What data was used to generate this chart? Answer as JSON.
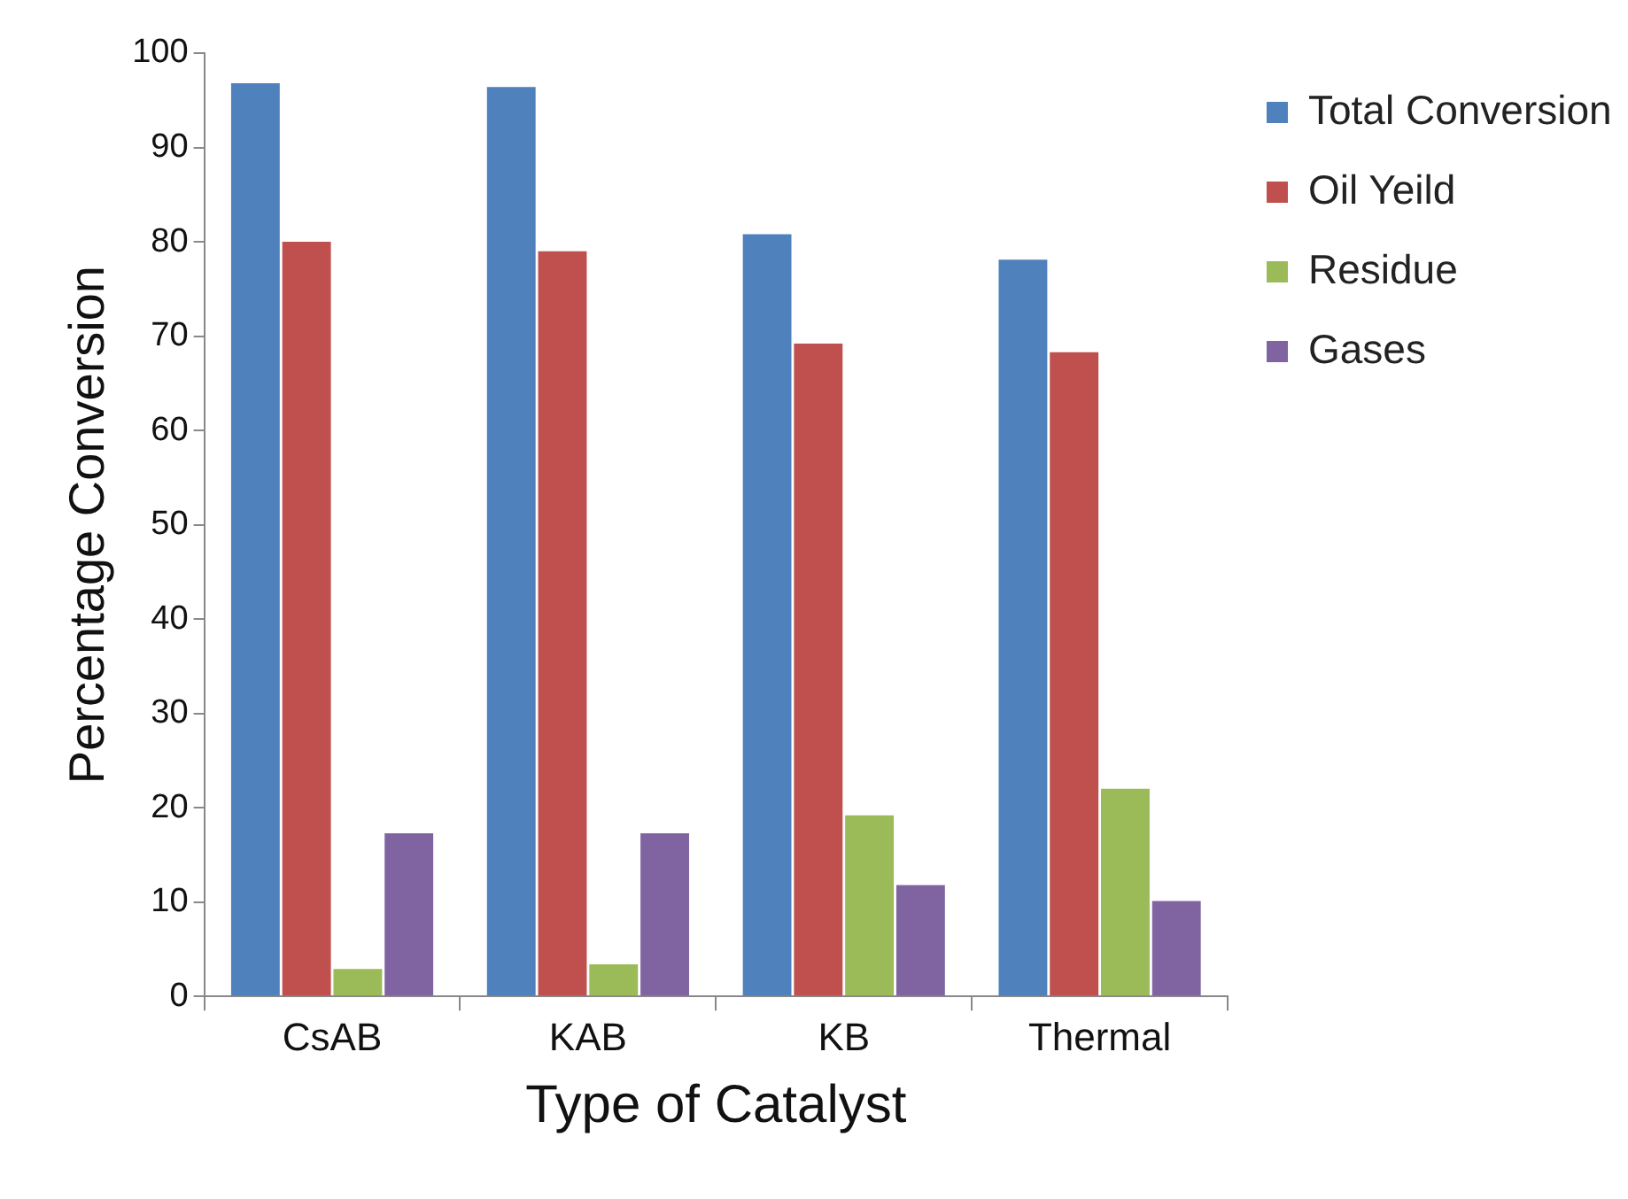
{
  "chart_data": {
    "type": "bar",
    "xlabel": "Type of Catalyst",
    "ylabel": "Percentage Conversion",
    "categories": [
      "CsAB",
      "KAB",
      "KB",
      "Thermal"
    ],
    "series": [
      {
        "name": "Total Conversion",
        "color": "#4f81bd",
        "values": [
          96.8,
          96.4,
          80.8,
          78.1
        ]
      },
      {
        "name": "Oil Yeild",
        "color": "#c0504d",
        "values": [
          80,
          79,
          69.2,
          68.3
        ]
      },
      {
        "name": "Residue",
        "color": "#9bbb59",
        "values": [
          2.9,
          3.4,
          19.2,
          22
        ]
      },
      {
        "name": "Gases",
        "color": "#8064a2",
        "values": [
          17.3,
          17.3,
          11.8,
          10.1
        ]
      }
    ],
    "ylim": [
      0,
      100
    ],
    "yticks": [
      0,
      10,
      20,
      30,
      40,
      50,
      60,
      70,
      80,
      90,
      100
    ],
    "grid": false,
    "legend": "top right"
  }
}
